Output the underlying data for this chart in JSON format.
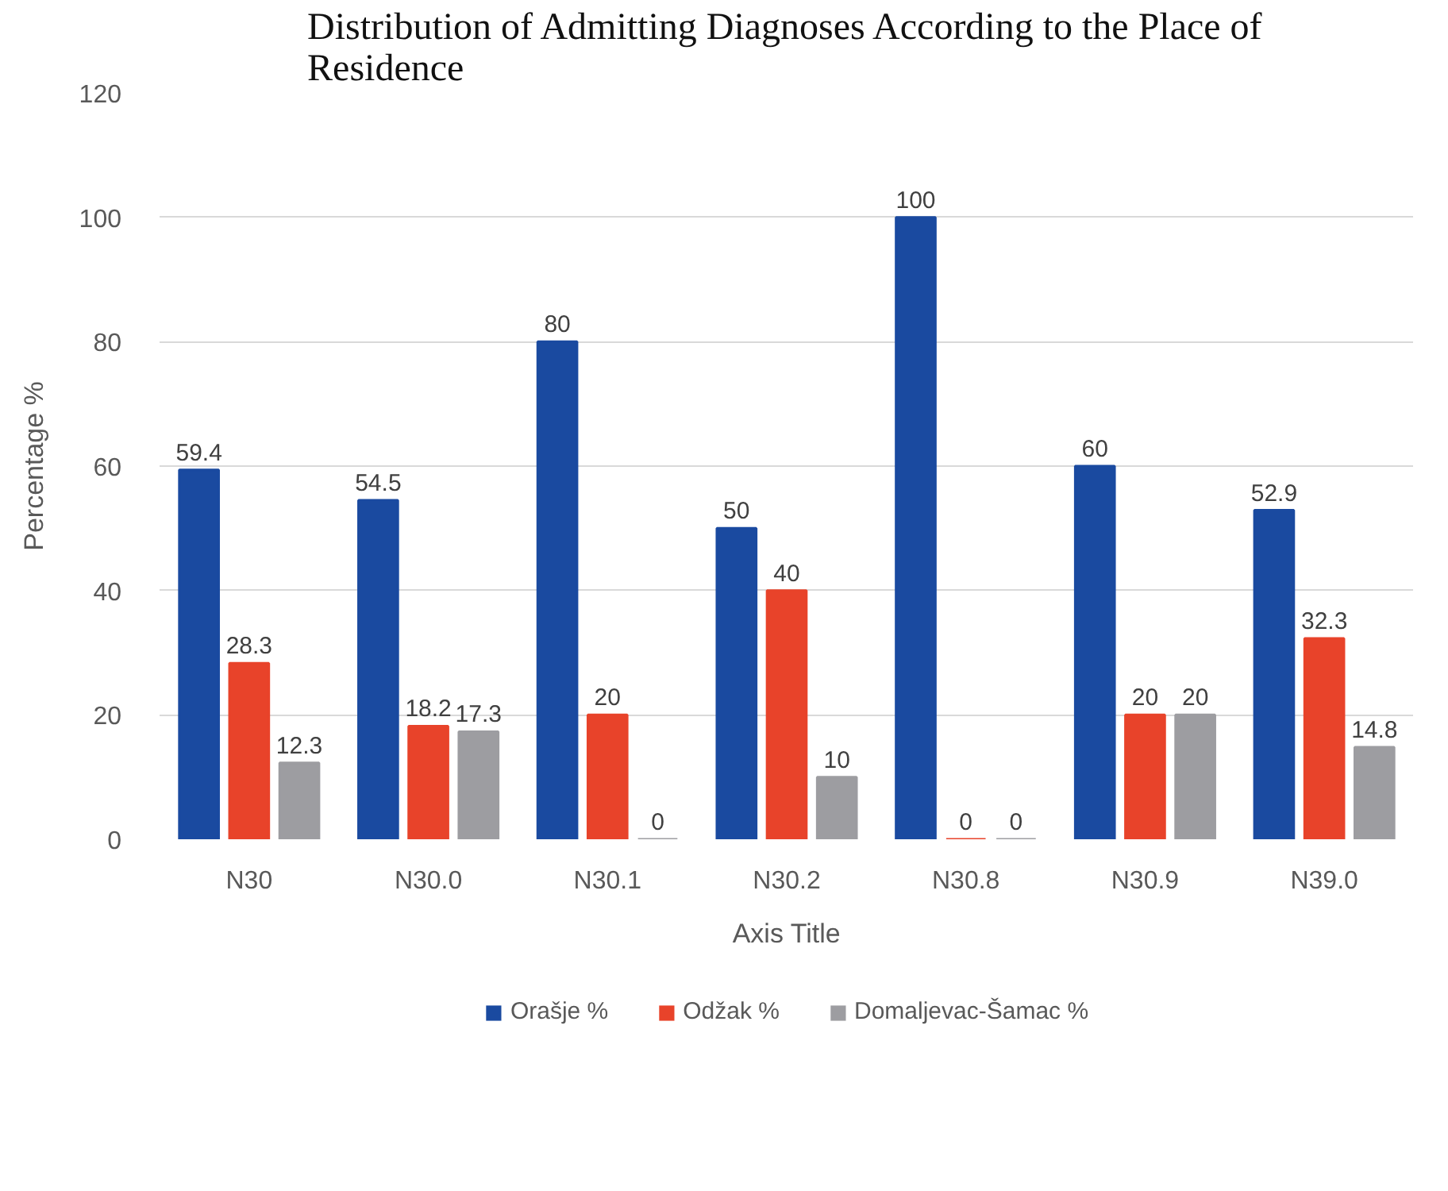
{
  "chart_data": {
    "type": "bar",
    "title": "Distribution of Admitting Diagnoses According to the Place of Residence",
    "xlabel": "Axis Title",
    "ylabel": "Percentage %",
    "categories": [
      "N30",
      "N30.0",
      "N30.1",
      "N30.2",
      "N30.8",
      "N30.9",
      "N39.0"
    ],
    "series": [
      {
        "name": "Orašje %",
        "color": "#1a4aa0",
        "values": [
          59.4,
          54.5,
          80,
          50,
          100,
          60,
          52.9
        ]
      },
      {
        "name": "Odžak %",
        "color": "#e8432a",
        "values": [
          28.3,
          18.2,
          20,
          40,
          0,
          20,
          32.3
        ]
      },
      {
        "name": "Domaljevac-Šamac %",
        "color": "#9d9da1",
        "values": [
          12.3,
          17.3,
          0,
          10,
          0,
          20,
          14.8
        ]
      }
    ],
    "ylim": [
      0,
      120
    ],
    "yticks": [
      0,
      20,
      40,
      60,
      80,
      100,
      120
    ],
    "grid": "y",
    "legend": "bottom",
    "data_labels": true
  }
}
